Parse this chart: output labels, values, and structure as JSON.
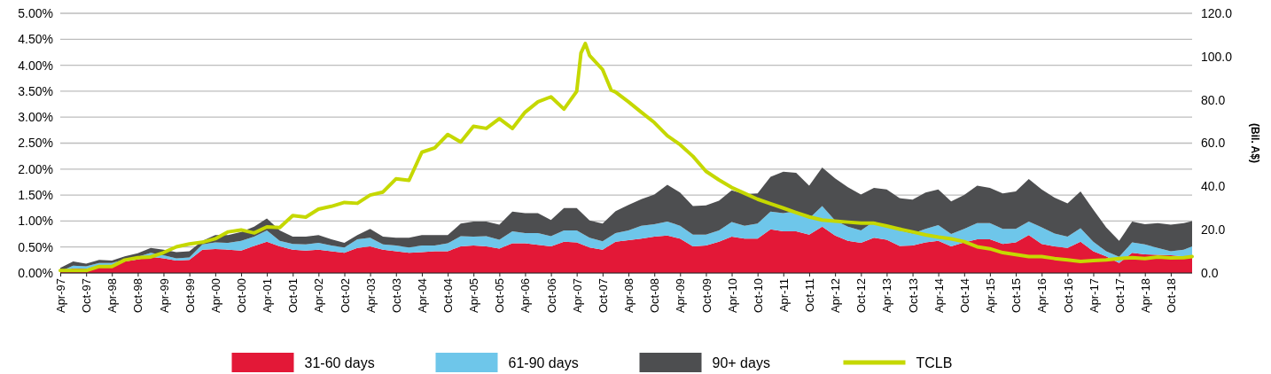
{
  "chart_data": {
    "type": "area",
    "stacked": true,
    "grid": "y",
    "legend": "bottom",
    "y2label": "(Bil. A$)",
    "x": [
      "1997-04",
      "1997-07",
      "1997-10",
      "1998-01",
      "1998-04",
      "1998-07",
      "1998-10",
      "1999-01",
      "1999-04",
      "1999-07",
      "1999-10",
      "2000-01",
      "2000-04",
      "2000-07",
      "2000-10",
      "2001-01",
      "2001-04",
      "2001-07",
      "2001-10",
      "2002-01",
      "2002-04",
      "2002-07",
      "2002-10",
      "2003-01",
      "2003-04",
      "2003-07",
      "2003-10",
      "2004-01",
      "2004-04",
      "2004-07",
      "2004-10",
      "2005-01",
      "2005-04",
      "2005-07",
      "2005-10",
      "2006-01",
      "2006-04",
      "2006-07",
      "2006-10",
      "2007-01",
      "2007-04",
      "2007-07",
      "2007-10",
      "2008-01",
      "2008-04",
      "2008-07",
      "2008-10",
      "2009-01",
      "2009-04",
      "2009-07",
      "2009-10",
      "2010-01",
      "2010-04",
      "2010-07",
      "2010-10",
      "2011-01",
      "2011-04",
      "2011-07",
      "2011-10",
      "2012-01",
      "2012-04",
      "2012-07",
      "2012-10",
      "2013-01",
      "2013-04",
      "2013-07",
      "2013-10",
      "2014-01",
      "2014-04",
      "2014-07",
      "2014-10",
      "2015-01",
      "2015-04",
      "2015-07",
      "2015-10",
      "2016-01",
      "2016-04",
      "2016-07",
      "2016-10",
      "2017-01",
      "2017-04",
      "2017-07",
      "2017-10",
      "2018-01",
      "2018-04",
      "2018-07",
      "2018-10",
      "2019-01",
      "2019-03"
    ],
    "xlim": [
      "1997-04",
      "2019-03"
    ],
    "xticks": [
      {
        "value": "1997-04",
        "label": "Apr-97"
      },
      {
        "value": "1997-10",
        "label": "Oct-97"
      },
      {
        "value": "1998-04",
        "label": "Apr-98"
      },
      {
        "value": "1998-10",
        "label": "Oct-98"
      },
      {
        "value": "1999-04",
        "label": "Apr-99"
      },
      {
        "value": "1999-10",
        "label": "Oct-99"
      },
      {
        "value": "2000-04",
        "label": "Apr-00"
      },
      {
        "value": "2000-10",
        "label": "Oct-00"
      },
      {
        "value": "2001-04",
        "label": "Apr-01"
      },
      {
        "value": "2001-10",
        "label": "Oct-01"
      },
      {
        "value": "2002-04",
        "label": "Apr-02"
      },
      {
        "value": "2002-10",
        "label": "Oct-02"
      },
      {
        "value": "2003-04",
        "label": "Apr-03"
      },
      {
        "value": "2003-10",
        "label": "Oct-03"
      },
      {
        "value": "2004-04",
        "label": "Apr-04"
      },
      {
        "value": "2004-10",
        "label": "Oct-04"
      },
      {
        "value": "2005-04",
        "label": "Apr-05"
      },
      {
        "value": "2005-10",
        "label": "Oct-05"
      },
      {
        "value": "2006-04",
        "label": "Apr-06"
      },
      {
        "value": "2006-10",
        "label": "Oct-06"
      },
      {
        "value": "2007-04",
        "label": "Apr-07"
      },
      {
        "value": "2007-10",
        "label": "Oct-07"
      },
      {
        "value": "2008-04",
        "label": "Apr-08"
      },
      {
        "value": "2008-10",
        "label": "Oct-08"
      },
      {
        "value": "2009-04",
        "label": "Apr-09"
      },
      {
        "value": "2009-10",
        "label": "Oct-09"
      },
      {
        "value": "2010-04",
        "label": "Apr-10"
      },
      {
        "value": "2010-10",
        "label": "Oct-10"
      },
      {
        "value": "2011-04",
        "label": "Apr-11"
      },
      {
        "value": "2011-10",
        "label": "Oct-11"
      },
      {
        "value": "2012-04",
        "label": "Apr-12"
      },
      {
        "value": "2012-10",
        "label": "Oct-12"
      },
      {
        "value": "2013-04",
        "label": "Apr-13"
      },
      {
        "value": "2013-10",
        "label": "Oct-13"
      },
      {
        "value": "2014-04",
        "label": "Apr-14"
      },
      {
        "value": "2014-10",
        "label": "Oct-14"
      },
      {
        "value": "2015-04",
        "label": "Apr-15"
      },
      {
        "value": "2015-10",
        "label": "Oct-15"
      },
      {
        "value": "2016-04",
        "label": "Apr-16"
      },
      {
        "value": "2016-10",
        "label": "Oct-16"
      },
      {
        "value": "2017-04",
        "label": "Apr-17"
      },
      {
        "value": "2017-10",
        "label": "Oct-17"
      },
      {
        "value": "2018-04",
        "label": "Apr-18"
      },
      {
        "value": "2018-10",
        "label": "Oct-18"
      }
    ],
    "ylim": [
      0,
      5
    ],
    "yticks": [
      {
        "value": 0,
        "label": "0.00%"
      },
      {
        "value": 0.5,
        "label": "0.50%"
      },
      {
        "value": 1,
        "label": "1.00%"
      },
      {
        "value": 1.5,
        "label": "1.50%"
      },
      {
        "value": 2,
        "label": "2.00%"
      },
      {
        "value": 2.5,
        "label": "2.50%"
      },
      {
        "value": 3,
        "label": "3.00%"
      },
      {
        "value": 3.5,
        "label": "3.50%"
      },
      {
        "value": 4,
        "label": "4.00%"
      },
      {
        "value": 4.5,
        "label": "4.50%"
      },
      {
        "value": 5,
        "label": "5.00%"
      }
    ],
    "y2lim": [
      0,
      120
    ],
    "y2ticks": [
      {
        "value": 0,
        "label": "0.0"
      },
      {
        "value": 20,
        "label": "20.0"
      },
      {
        "value": 40,
        "label": "40.0"
      },
      {
        "value": 60,
        "label": "60.0"
      },
      {
        "value": 80,
        "label": "80.0"
      },
      {
        "value": 100,
        "label": "100.0"
      },
      {
        "value": 120,
        "label": "120.0"
      }
    ],
    "series": [
      {
        "name": "31-60 days",
        "color": "#e31837",
        "values": [
          0.02,
          0.09,
          0.08,
          0.15,
          0.15,
          0.22,
          0.26,
          0.31,
          0.28,
          0.24,
          0.25,
          0.45,
          0.46,
          0.45,
          0.43,
          0.52,
          0.6,
          0.51,
          0.45,
          0.43,
          0.45,
          0.42,
          0.39,
          0.48,
          0.51,
          0.45,
          0.42,
          0.39,
          0.4,
          0.42,
          0.42,
          0.51,
          0.53,
          0.51,
          0.47,
          0.57,
          0.57,
          0.54,
          0.51,
          0.6,
          0.59,
          0.49,
          0.45,
          0.6,
          0.63,
          0.66,
          0.7,
          0.72,
          0.66,
          0.51,
          0.53,
          0.6,
          0.7,
          0.66,
          0.66,
          0.84,
          0.8,
          0.8,
          0.74,
          0.89,
          0.72,
          0.62,
          0.58,
          0.68,
          0.64,
          0.52,
          0.53,
          0.59,
          0.62,
          0.51,
          0.59,
          0.65,
          0.65,
          0.56,
          0.59,
          0.73,
          0.56,
          0.51,
          0.48,
          0.6,
          0.42,
          0.32,
          0.19,
          0.39,
          0.36,
          0.35,
          0.34,
          0.32,
          0.32
        ]
      },
      {
        "name": "61-90 days",
        "color": "#6ec6ea",
        "values": [
          0.01,
          0.05,
          0.05,
          0.04,
          0.04,
          0.04,
          0.05,
          0.08,
          0.06,
          0.04,
          0.05,
          0.1,
          0.13,
          0.13,
          0.19,
          0.18,
          0.22,
          0.11,
          0.11,
          0.12,
          0.13,
          0.11,
          0.1,
          0.17,
          0.17,
          0.1,
          0.11,
          0.1,
          0.13,
          0.11,
          0.15,
          0.2,
          0.17,
          0.2,
          0.17,
          0.23,
          0.2,
          0.23,
          0.2,
          0.22,
          0.23,
          0.19,
          0.16,
          0.17,
          0.19,
          0.25,
          0.24,
          0.27,
          0.25,
          0.23,
          0.21,
          0.22,
          0.28,
          0.25,
          0.29,
          0.34,
          0.35,
          0.39,
          0.31,
          0.4,
          0.29,
          0.27,
          0.24,
          0.31,
          0.26,
          0.3,
          0.23,
          0.26,
          0.3,
          0.24,
          0.26,
          0.31,
          0.31,
          0.29,
          0.26,
          0.26,
          0.32,
          0.25,
          0.22,
          0.26,
          0.18,
          0.1,
          0.12,
          0.2,
          0.19,
          0.13,
          0.08,
          0.13,
          0.19
        ]
      },
      {
        "name": "90+ days",
        "color": "#4d4e50",
        "values": [
          0.07,
          0.08,
          0.05,
          0.06,
          0.05,
          0.06,
          0.07,
          0.09,
          0.11,
          0.12,
          0.12,
          0.07,
          0.14,
          0.15,
          0.17,
          0.19,
          0.23,
          0.2,
          0.14,
          0.15,
          0.15,
          0.12,
          0.09,
          0.08,
          0.17,
          0.15,
          0.15,
          0.19,
          0.2,
          0.2,
          0.16,
          0.24,
          0.29,
          0.28,
          0.29,
          0.38,
          0.38,
          0.38,
          0.31,
          0.43,
          0.43,
          0.33,
          0.34,
          0.42,
          0.49,
          0.51,
          0.57,
          0.71,
          0.64,
          0.55,
          0.56,
          0.57,
          0.61,
          0.61,
          0.58,
          0.67,
          0.8,
          0.74,
          0.63,
          0.74,
          0.81,
          0.76,
          0.69,
          0.65,
          0.71,
          0.62,
          0.65,
          0.7,
          0.69,
          0.63,
          0.65,
          0.72,
          0.68,
          0.68,
          0.72,
          0.82,
          0.73,
          0.69,
          0.64,
          0.71,
          0.62,
          0.46,
          0.31,
          0.4,
          0.39,
          0.48,
          0.51,
          0.51,
          0.49
        ]
      },
      {
        "name": "TCLB",
        "color": "#c5d800",
        "type": "line",
        "axis": "y2",
        "x": [
          "1997-04",
          "1997-07",
          "1997-10",
          "1998-01",
          "1998-04",
          "1998-07",
          "1998-10",
          "1999-01",
          "1999-04",
          "1999-07",
          "1999-10",
          "2000-01",
          "2000-04",
          "2000-07",
          "2000-10",
          "2001-01",
          "2001-04",
          "2001-07",
          "2001-10",
          "2002-01",
          "2002-04",
          "2002-07",
          "2002-10",
          "2003-01",
          "2003-04",
          "2003-07",
          "2003-10",
          "2004-01",
          "2004-04",
          "2004-07",
          "2004-10",
          "2005-01",
          "2005-04",
          "2005-07",
          "2005-10",
          "2006-01",
          "2006-04",
          "2006-07",
          "2006-10",
          "2007-01",
          "2007-04",
          "2007-05",
          "2007-06",
          "2007-07",
          "2007-10",
          "2007-12",
          "2008-01",
          "2008-04",
          "2008-07",
          "2008-10",
          "2009-01",
          "2009-04",
          "2009-07",
          "2009-10",
          "2010-01",
          "2010-04",
          "2010-07",
          "2010-10",
          "2011-01",
          "2011-04",
          "2011-07",
          "2011-10",
          "2012-01",
          "2012-04",
          "2012-07",
          "2012-10",
          "2013-01",
          "2013-04",
          "2013-07",
          "2013-10",
          "2014-01",
          "2014-04",
          "2014-07",
          "2014-10",
          "2015-01",
          "2015-04",
          "2015-07",
          "2015-10",
          "2016-01",
          "2016-04",
          "2016-07",
          "2016-10",
          "2017-01",
          "2017-04",
          "2017-07",
          "2017-10",
          "2018-01",
          "2018-04",
          "2018-07",
          "2018-10",
          "2019-01",
          "2019-03"
        ],
        "values": [
          1.1,
          1.1,
          1.1,
          3.0,
          3.0,
          6.0,
          7.1,
          7.4,
          9.4,
          12.1,
          13.4,
          14.2,
          15.8,
          19.0,
          19.9,
          18.5,
          21.3,
          21.0,
          26.5,
          25.8,
          29.5,
          30.8,
          32.6,
          32.2,
          36.0,
          37.4,
          43.5,
          42.8,
          55.8,
          57.8,
          64.0,
          60.5,
          67.8,
          66.8,
          71.3,
          66.8,
          74.3,
          79.1,
          81.4,
          75.7,
          83.9,
          101.6,
          106.0,
          100.5,
          94.0,
          84.5,
          83.6,
          79.1,
          74.3,
          69.5,
          63.4,
          59.3,
          53.9,
          47.0,
          43.0,
          39.5,
          36.8,
          34.1,
          32.0,
          30.0,
          27.9,
          25.9,
          24.5,
          24.0,
          23.5,
          23.0,
          23.0,
          21.7,
          20.3,
          19.0,
          17.6,
          16.6,
          15.8,
          14.5,
          12.1,
          11.2,
          9.4,
          8.5,
          7.6,
          7.6,
          6.7,
          6.0,
          5.3,
          5.7,
          6.0,
          6.7,
          7.1,
          6.7,
          7.4,
          7.0,
          7.1,
          7.6
        ]
      }
    ]
  }
}
